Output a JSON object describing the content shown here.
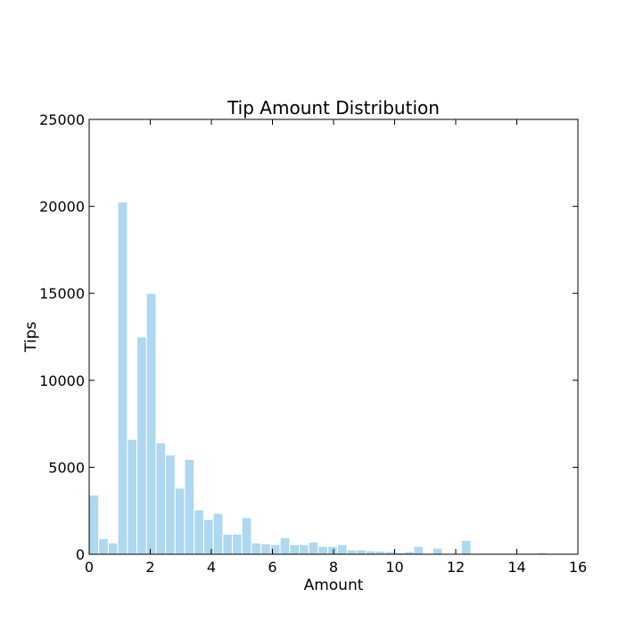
{
  "chart_data": {
    "type": "bar",
    "title": "Tip Amount Distribution",
    "xlabel": "Amount",
    "ylabel": "Tips",
    "xlim": [
      0,
      16
    ],
    "ylim": [
      0,
      25000
    ],
    "xticks": [
      0,
      2,
      4,
      6,
      8,
      10,
      12,
      14,
      16
    ],
    "yticks": [
      0,
      5000,
      10000,
      15000,
      20000,
      25000
    ],
    "bin_width": 0.3125,
    "bin_edges_start": 0,
    "bar_color": "#add8ef",
    "bar_edge_color": "#ffffff",
    "grid": false,
    "values": [
      3400,
      900,
      650,
      20250,
      6600,
      12500,
      15000,
      6400,
      5700,
      3800,
      5450,
      2550,
      2000,
      2350,
      1150,
      1150,
      2100,
      650,
      600,
      550,
      950,
      550,
      550,
      700,
      450,
      450,
      550,
      250,
      250,
      200,
      180,
      150,
      100,
      150,
      450,
      50,
      350,
      50,
      0,
      800,
      50,
      50,
      30,
      30,
      30,
      20,
      40,
      100,
      30,
      30,
      30
    ]
  }
}
